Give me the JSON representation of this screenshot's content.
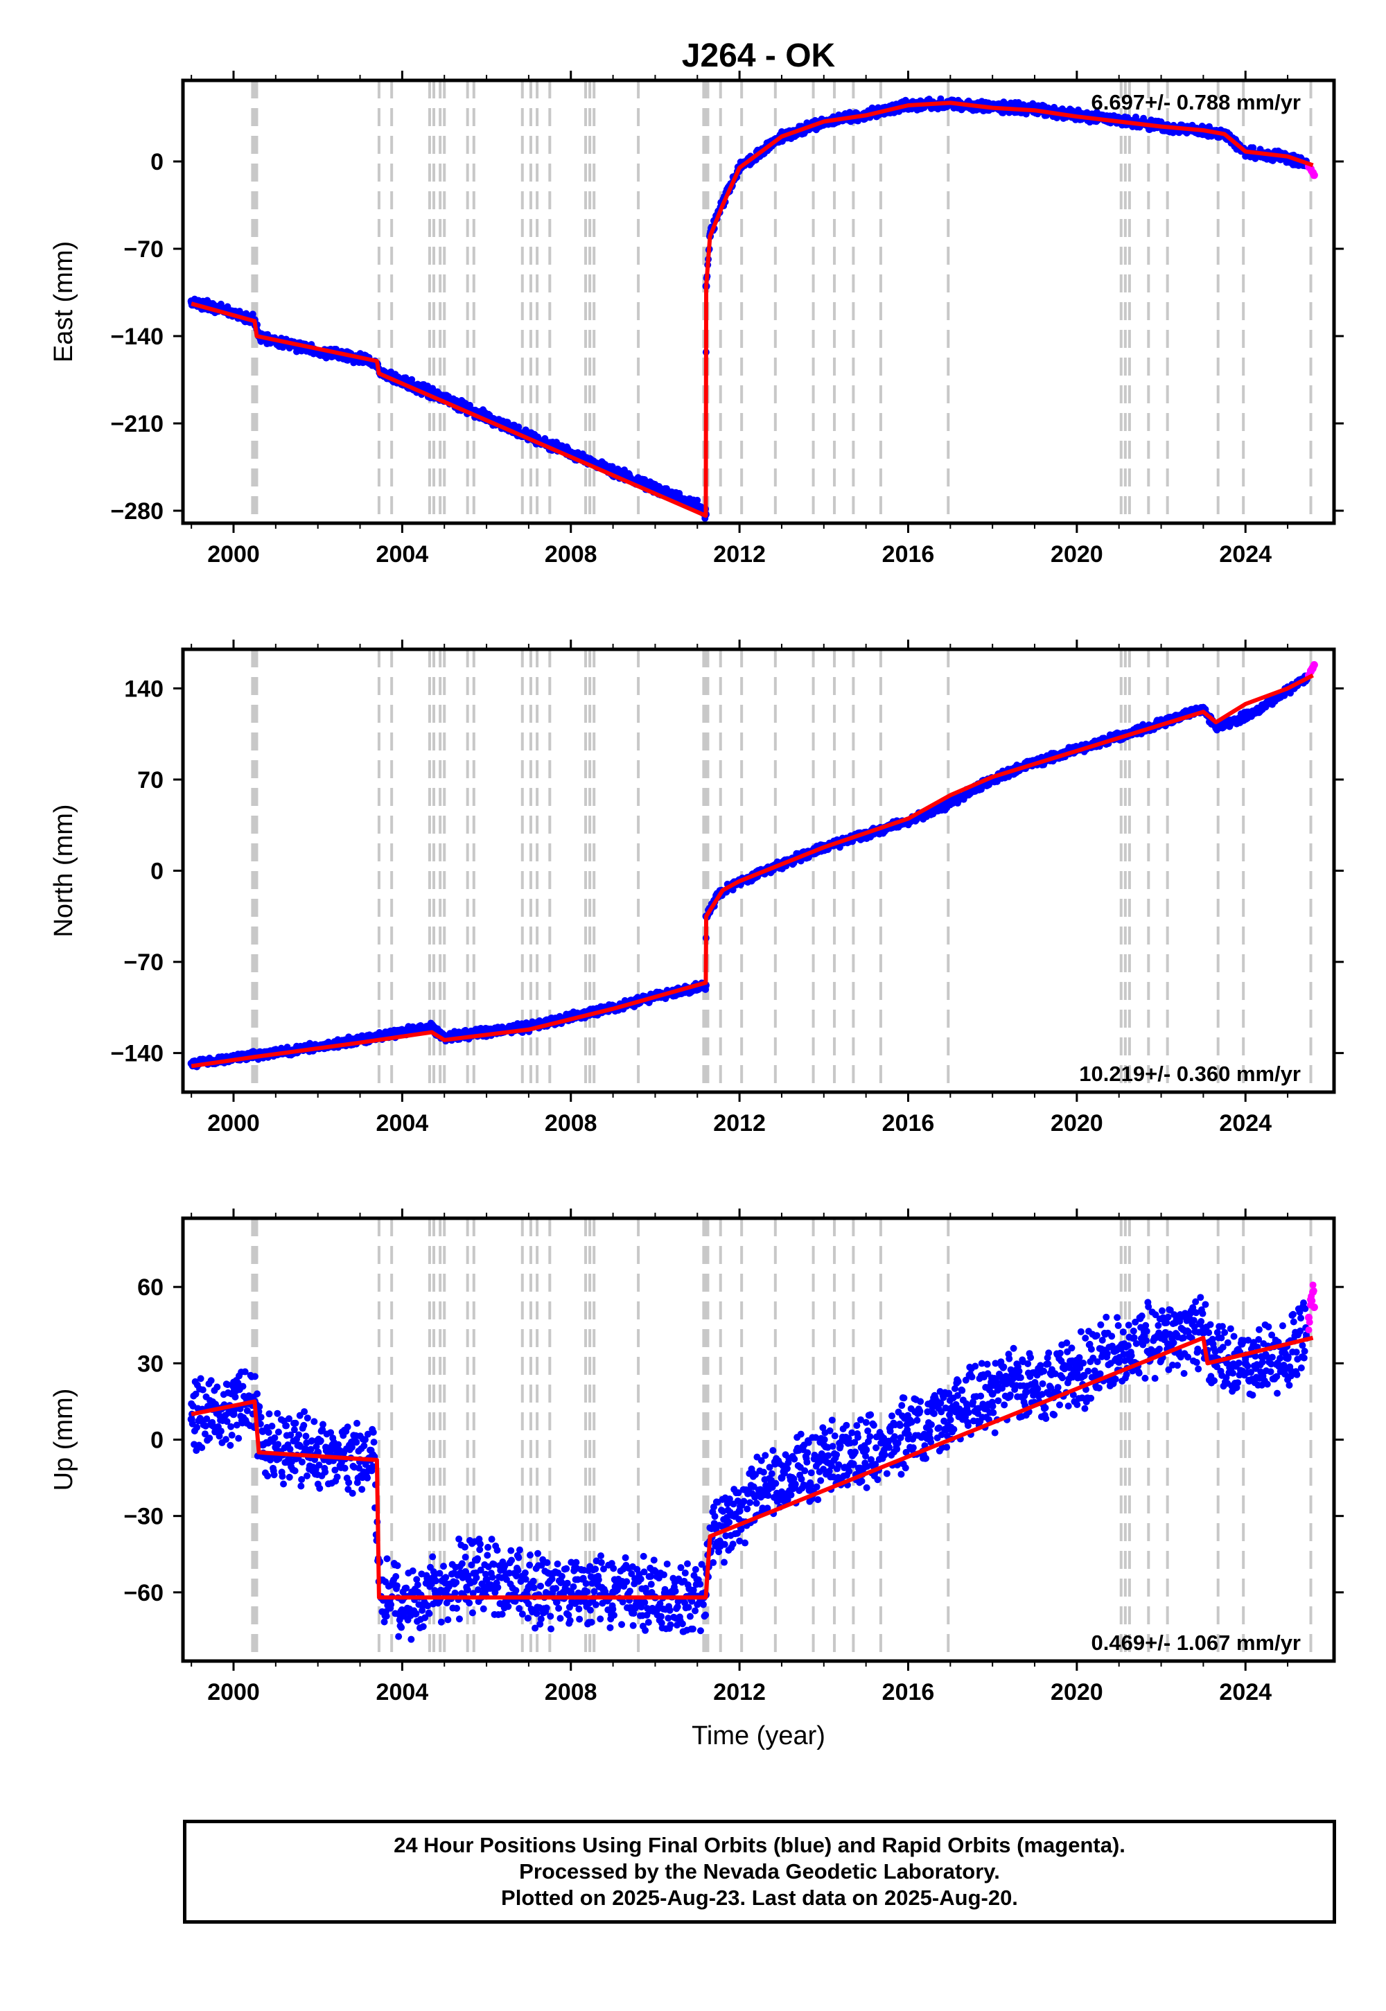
{
  "chart_data": [
    {
      "type": "scatter",
      "title": "J264 - OK",
      "ylabel": "East (mm)",
      "xlabel": "",
      "xlim": [
        1998.8,
        2026.1
      ],
      "ylim": [
        -290,
        65
      ],
      "xticks": [
        2000,
        2004,
        2008,
        2012,
        2016,
        2020,
        2024
      ],
      "yticks": [
        -280,
        -210,
        -140,
        -70,
        0
      ],
      "rate_label": "6.697+/- 0.788 mm/yr",
      "series": [
        {
          "name": "Final Orbits",
          "color": "#0000ff",
          "x": [
            1999.0,
            1999.5,
            2000.0,
            2000.5,
            2000.6,
            2001.0,
            2002.0,
            2003.0,
            2003.4,
            2003.5,
            2004.0,
            2005.0,
            2006.0,
            2007.0,
            2008.0,
            2009.0,
            2010.0,
            2011.0,
            2011.2,
            2011.21,
            2011.3,
            2011.5,
            2012.0,
            2013.0,
            2014.0,
            2015.0,
            2016.0,
            2017.0,
            2018.0,
            2019.0,
            2020.0,
            2021.0,
            2022.0,
            2023.0,
            2023.5,
            2024.0,
            2025.0,
            2025.45
          ],
          "y": [
            -112,
            -117,
            -122,
            -127,
            -140,
            -145,
            -152,
            -158,
            -162,
            -170,
            -176,
            -190,
            -205,
            -220,
            -234,
            -248,
            -262,
            -276,
            -283,
            -100,
            -60,
            -40,
            -5,
            20,
            32,
            38,
            45,
            46,
            44,
            42,
            37,
            33,
            28,
            24,
            22,
            8,
            3,
            -2
          ]
        },
        {
          "name": "Rapid Orbits",
          "color": "#ff00ff",
          "x": [
            2025.5,
            2025.55,
            2025.6,
            2025.63
          ],
          "y": [
            -4,
            -6,
            -9,
            -11
          ]
        },
        {
          "name": "Model",
          "color": "#ff0000",
          "x": [
            1999.0,
            2000.5,
            2000.55,
            2003.4,
            2003.45,
            2011.2,
            2011.21,
            2011.3,
            2011.6,
            2012.0,
            2013.0,
            2014.0,
            2015.0,
            2016.0,
            2017.0,
            2018.0,
            2019.0,
            2020.0,
            2021.0,
            2022.0,
            2023.0,
            2023.5,
            2024.0,
            2025.0,
            2025.6
          ],
          "y": [
            -114,
            -128,
            -140,
            -160,
            -170,
            -284,
            -100,
            -60,
            -35,
            -5,
            20,
            32,
            37,
            45,
            47,
            43,
            41,
            36,
            32,
            28,
            25,
            22,
            8,
            4,
            -3
          ]
        }
      ]
    },
    {
      "type": "scatter",
      "title": "",
      "ylabel": "North (mm)",
      "xlabel": "",
      "xlim": [
        1998.8,
        2026.1
      ],
      "ylim": [
        -170,
        170
      ],
      "xticks": [
        2000,
        2004,
        2008,
        2012,
        2016,
        2020,
        2024
      ],
      "yticks": [
        -140,
        -70,
        0,
        70,
        140
      ],
      "rate_label": "10.219+/- 0.360 mm/yr",
      "series": [
        {
          "name": "Final Orbits",
          "color": "#0000ff",
          "x": [
            1999.0,
            2000.0,
            2001.0,
            2002.0,
            2003.0,
            2004.0,
            2004.7,
            2005.0,
            2006.0,
            2007.0,
            2008.0,
            2009.0,
            2010.0,
            2011.2,
            2011.21,
            2011.5,
            2012.0,
            2013.0,
            2014.0,
            2015.0,
            2016.0,
            2017.0,
            2018.0,
            2019.0,
            2020.0,
            2021.0,
            2022.0,
            2023.0,
            2023.3,
            2024.0,
            2025.0,
            2025.45
          ],
          "y": [
            -148,
            -144,
            -140,
            -135,
            -130,
            -124,
            -120,
            -128,
            -124,
            -120,
            -112,
            -105,
            -97,
            -88,
            -35,
            -18,
            -8,
            5,
            18,
            28,
            38,
            52,
            70,
            83,
            93,
            103,
            113,
            125,
            110,
            118,
            138,
            147
          ]
        },
        {
          "name": "Rapid Orbits",
          "color": "#ff00ff",
          "x": [
            2025.5,
            2025.55,
            2025.6,
            2025.63
          ],
          "y": [
            150,
            153,
            156,
            158
          ]
        },
        {
          "name": "Model",
          "color": "#ff0000",
          "x": [
            1999.0,
            2000.5,
            2003.0,
            2004.7,
            2005.0,
            2007.0,
            2009.0,
            2011.2,
            2011.21,
            2011.6,
            2012.0,
            2014.0,
            2016.0,
            2017.0,
            2018.0,
            2020.0,
            2022.0,
            2023.0,
            2023.3,
            2024.0,
            2025.0,
            2025.6
          ],
          "y": [
            -150,
            -143,
            -132,
            -124,
            -130,
            -122,
            -106,
            -86,
            -35,
            -15,
            -8,
            18,
            40,
            58,
            72,
            92,
            112,
            122,
            114,
            128,
            140,
            150
          ]
        }
      ]
    },
    {
      "type": "scatter",
      "title": "",
      "ylabel": "Up (mm)",
      "xlabel": "Time (year)",
      "xlim": [
        1998.8,
        2026.1
      ],
      "ylim": [
        -87,
        87
      ],
      "xticks": [
        2000,
        2004,
        2008,
        2012,
        2016,
        2020,
        2024
      ],
      "yticks": [
        -60,
        -30,
        0,
        30,
        60
      ],
      "rate_label": "0.469+/- 1.067 mm/yr",
      "series": [
        {
          "name": "Final Orbits",
          "color": "#0000ff",
          "x": [
            1999.0,
            1999.5,
            2000.0,
            2000.5,
            2000.7,
            2001.0,
            2002.0,
            2003.0,
            2003.3,
            2003.5,
            2004.0,
            2005.0,
            2005.5,
            2006.0,
            2007.0,
            2008.0,
            2009.0,
            2010.0,
            2011.2,
            2011.3,
            2012.0,
            2013.0,
            2014.0,
            2015.0,
            2016.0,
            2017.0,
            2018.0,
            2019.0,
            2020.0,
            2021.0,
            2022.0,
            2023.0,
            2023.3,
            2024.0,
            2025.0,
            2025.45
          ],
          "y": [
            8,
            12,
            10,
            15,
            -2,
            -3,
            -5,
            -8,
            -6,
            -62,
            -63,
            -60,
            -52,
            -55,
            -58,
            -60,
            -60,
            -62,
            -61,
            -40,
            -28,
            -15,
            -8,
            -4,
            2,
            12,
            18,
            22,
            26,
            36,
            40,
            42,
            32,
            30,
            32,
            40
          ]
        },
        {
          "name": "Rapid Orbits",
          "color": "#ff00ff",
          "x": [
            2025.5,
            2025.55,
            2025.6,
            2025.63
          ],
          "y": [
            48,
            55,
            58,
            52
          ]
        },
        {
          "name": "Model",
          "color": "#ff0000",
          "x": [
            1999.0,
            2000.5,
            2000.6,
            2003.4,
            2003.45,
            2011.2,
            2011.3,
            2023.0,
            2023.1,
            2025.6
          ],
          "y": [
            10,
            15,
            -5,
            -8,
            -62,
            -62,
            -38,
            40,
            30,
            40
          ]
        }
      ]
    }
  ],
  "event_lines": [
    2000.45,
    2000.5,
    2000.55,
    2003.45,
    2003.75,
    2004.65,
    2004.75,
    2004.9,
    2005.0,
    2005.55,
    2005.7,
    2006.85,
    2007.05,
    2007.2,
    2007.5,
    2008.35,
    2008.45,
    2008.55,
    2009.6,
    2011.15,
    2011.2,
    2011.25,
    2011.55,
    2012.05,
    2012.85,
    2013.75,
    2014.25,
    2014.7,
    2015.35,
    2016.95,
    2021.05,
    2021.15,
    2021.25,
    2021.7,
    2022.15,
    2023.35,
    2023.95,
    2025.55
  ],
  "colors": {
    "final_orbits": "#0000ff",
    "rapid_orbits": "#ff00ff",
    "model": "#ff0000",
    "event_line": "#c8c8c8"
  },
  "footer": {
    "line1": "24 Hour Positions Using Final Orbits (blue) and Rapid Orbits (magenta).",
    "line2": "Processed by the Nevada Geodetic Laboratory.",
    "line3": "Plotted on 2025-Aug-23. Last data on 2025-Aug-20."
  }
}
